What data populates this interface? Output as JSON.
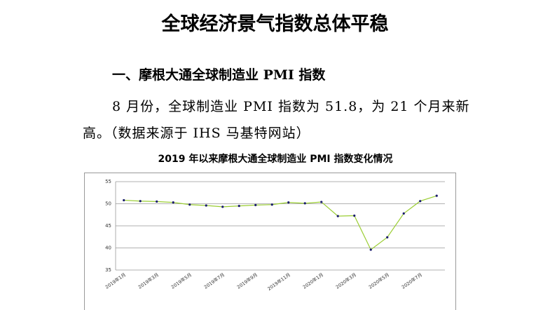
{
  "header": {
    "title": "全球经济景气指数总体平稳"
  },
  "section": {
    "heading": "一、摩根大通全球制造业 PMI 指数",
    "paragraph": [
      "8 月份，全球制造业 PMI 指数为 51.8，为 21 个月来新",
      "高。（数据来源于 IHS 马基特网站）"
    ]
  },
  "chart_data": {
    "type": "line",
    "title": "2019 年以来摩根大通全球制造业 PMI 指数变化情况",
    "categories": [
      "2019年1月",
      null,
      "2019年3月",
      null,
      "2019年5月",
      null,
      "2019年7月",
      null,
      "2019年9月",
      null,
      "2019年11月",
      null,
      "2020年1月",
      null,
      "2020年3月",
      null,
      "2020年5月",
      null,
      "2020年7月",
      null
    ],
    "values": [
      50.8,
      50.6,
      50.5,
      50.3,
      49.8,
      49.6,
      49.3,
      49.5,
      49.7,
      49.8,
      50.3,
      50.1,
      50.4,
      47.2,
      47.3,
      39.6,
      42.4,
      47.8,
      50.6,
      51.8
    ],
    "color": "#9acd32",
    "marker_color": "#1a1a6e",
    "ylim": [
      35,
      55
    ],
    "yticks": [
      35,
      40,
      45,
      50,
      55
    ],
    "grid": true
  }
}
